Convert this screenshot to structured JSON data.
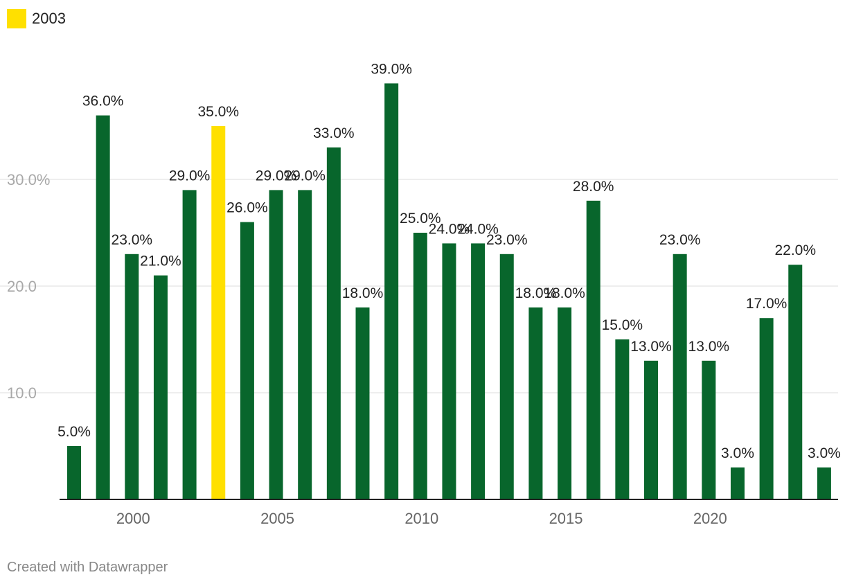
{
  "legend": {
    "label": "2003",
    "color": "#ffe000"
  },
  "footer": {
    "credit": "Created with Datawrapper"
  },
  "colors": {
    "bar": "#08662c",
    "highlight": "#ffe000",
    "grid": "#dddddd",
    "axis": "#222222",
    "tick_text": "#a8a8a8",
    "x_tick_text": "#666666",
    "label_text": "#222222"
  },
  "chart_data": {
    "type": "bar",
    "title": "",
    "xlabel": "",
    "ylabel": "",
    "categories": [
      "1998",
      "1999",
      "2000",
      "2001",
      "2002",
      "2003",
      "2004",
      "2005",
      "2006",
      "2007",
      "2008",
      "2009",
      "2010",
      "2011",
      "2012",
      "2013",
      "2014",
      "2015",
      "2016",
      "2017",
      "2018",
      "2019",
      "2020",
      "2021",
      "2022",
      "2023",
      "2024"
    ],
    "values": [
      5,
      36,
      23,
      21,
      29,
      35,
      26,
      29,
      29,
      33,
      18,
      39,
      25,
      24,
      24,
      23,
      18,
      18,
      28,
      15,
      13,
      23,
      13,
      3,
      17,
      22,
      3
    ],
    "value_labels": [
      "5.0%",
      "36.0%",
      "23.0%",
      "21.0%",
      "29.0%",
      "35.0%",
      "26.0%",
      "29.0%",
      "29.0%",
      "33.0%",
      "18.0%",
      "39.0%",
      "25.0%",
      "24.0%",
      "24.0%",
      "23.0%",
      "18.0%",
      "18.0%",
      "28.0%",
      "15.0%",
      "13.0%",
      "23.0%",
      "13.0%",
      "3.0%",
      "17.0%",
      "22.0%",
      "3.0%"
    ],
    "highlight_category": "2003",
    "ylim": [
      0,
      40
    ],
    "yticks": [
      10,
      20,
      30
    ],
    "ytick_labels": [
      "10.0",
      "20.0",
      "30.0%"
    ],
    "xticks": [
      "2000",
      "2005",
      "2010",
      "2015",
      "2020"
    ],
    "grid": true,
    "legend_position": "top-left"
  }
}
